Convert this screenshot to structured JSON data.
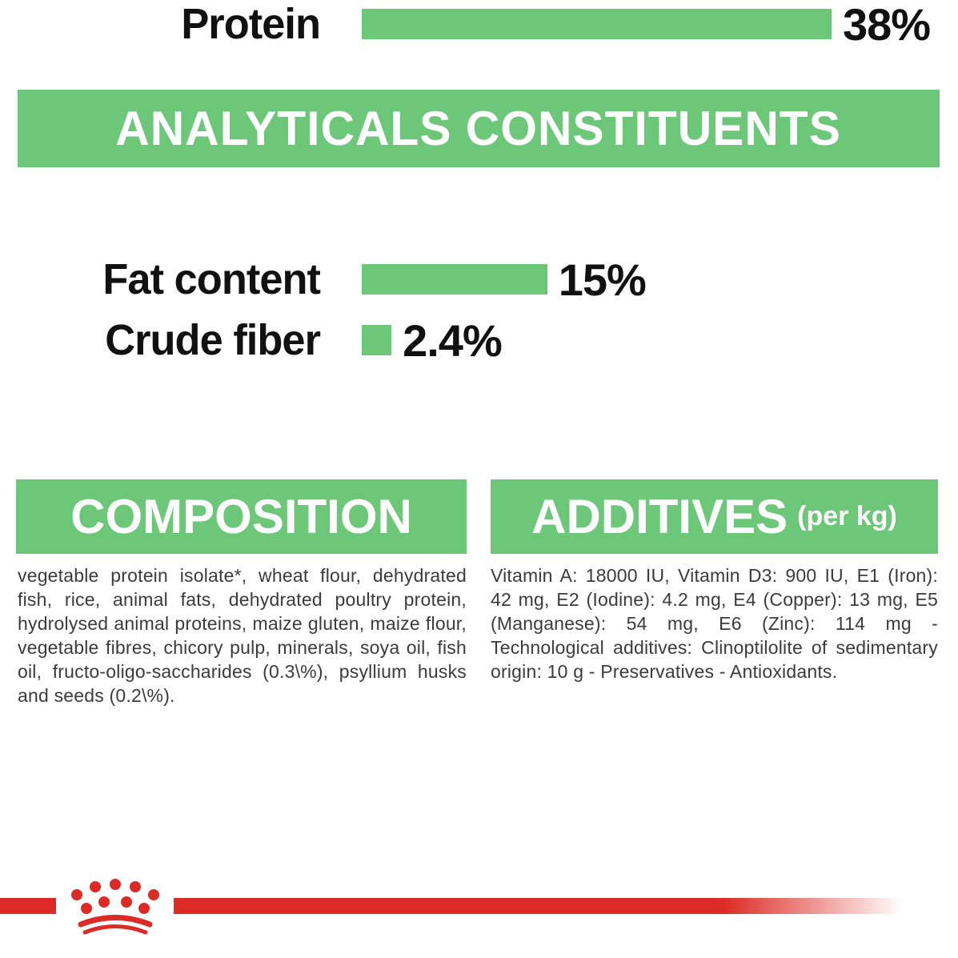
{
  "colors": {
    "green": "#6CC878",
    "red": "#DC2B25",
    "body_text": "#3B3B3B",
    "heading_text": "#FFFFFF",
    "label_text": "#111111"
  },
  "header": {
    "title": "ANALYTICALS CONSTITUENTS"
  },
  "chart_data": {
    "type": "bar",
    "orientation": "horizontal",
    "title": "ANALYTICALS CONSTITUENTS",
    "categories": [
      "Protein",
      "Fat content",
      "Crude fiber"
    ],
    "values": [
      38,
      15,
      2.4
    ],
    "value_labels": [
      "38%",
      "15%",
      "2.4%"
    ],
    "unit": "%",
    "xlim": [
      0,
      38
    ],
    "bar_color": "#6CC878",
    "grid": false,
    "legend": false
  },
  "sections": {
    "composition": {
      "title": "COMPOSITION",
      "body": "vegetable protein isolate*, wheat flour, dehydrated fish, rice, animal fats, dehydrated poultry protein, hydrolysed animal proteins, maize gluten, maize flour, vegetable fibres, chicory pulp, minerals, soya oil, fish oil, fructo-oligo-saccharides (0.3\\%), psyllium husks and seeds (0.2\\%)."
    },
    "additives": {
      "title": "ADDITIVES",
      "title_suffix": "(per kg)",
      "body": "Vitamin A: 18000 IU, Vitamin D3: 900 IU, E1 (Iron): 42 mg, E2 (Iodine): 4.2 mg, E4 (Copper): 13 mg, E5 (Manganese): 54 mg, E6 (Zinc): 114 mg - Technological additives: Clinoptilolite of sedimentary origin: 10 g - Preservatives - Antioxidants."
    }
  },
  "footer": {
    "logo": "royal-canin-crown-logo"
  }
}
